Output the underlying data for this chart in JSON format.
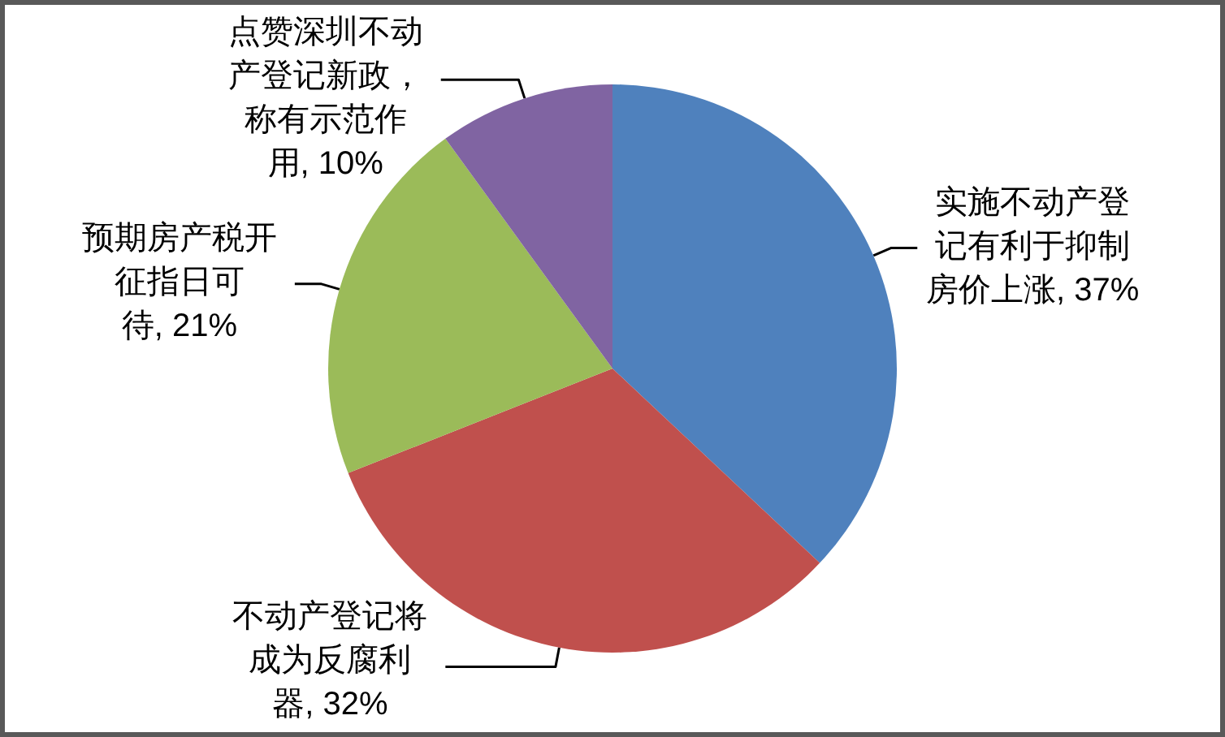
{
  "chart_data": {
    "type": "pie",
    "categories": [
      "实施不动产登记有利于抑制房价上涨",
      "不动产登记将成为反腐利器",
      "预期房产税开征指日可待",
      "点赞深圳不动产登记新政，称有示范作用"
    ],
    "values": [
      37,
      32,
      21,
      10
    ],
    "colors": [
      "#4f81bd",
      "#c0504d",
      "#9bbb59",
      "#8064a2"
    ],
    "value_labels": [
      "37%",
      "32%",
      "21%",
      "10%"
    ]
  }
}
